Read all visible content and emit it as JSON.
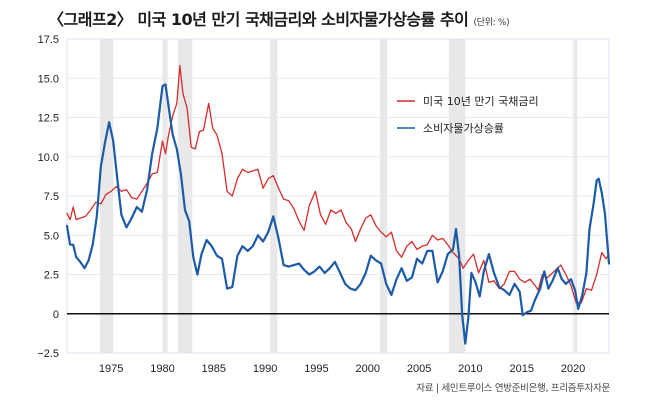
{
  "title": {
    "main": "〈그래프2〉 미국 10년 만기 국채금리와 소비자물가상승률 추이",
    "unit": "(단위: %)"
  },
  "source": "자료 |  세인트루이스 연방준비은행, 프리즘투자자문",
  "colors": {
    "treasury": "#d62c2c",
    "cpi": "#1d5aa8",
    "recession": "#e8e8e8",
    "grid": "#e3eaf3",
    "zero": "#111111"
  },
  "chart_data": {
    "type": "line",
    "title": "미국 10년 만기 국채금리와 소비자물가상승률 추이",
    "xlabel": "",
    "ylabel": "",
    "unit": "%",
    "xlim": [
      1970.7,
      2023.5
    ],
    "ylim": [
      -2.5,
      17.5
    ],
    "grid": true,
    "legend_position": "top-right",
    "yticks": [
      17.5,
      15.0,
      12.5,
      10.0,
      7.5,
      5.0,
      2.5,
      0,
      -2.5
    ],
    "ytick_labels": [
      "17.5",
      "15.0",
      "12.5",
      "10.0",
      "7.5",
      "5.0",
      "2.5",
      "0",
      "−2.5"
    ],
    "xticks": [
      1975,
      1980,
      1985,
      1990,
      1995,
      2000,
      2005,
      2010,
      2015,
      2020
    ],
    "xtick_labels": [
      "1975",
      "1980",
      "1985",
      "1990",
      "1995",
      "2000",
      "2005",
      "2010",
      "2015",
      "2020"
    ],
    "recessions": [
      [
        1973.9,
        1975.2
      ],
      [
        1980.0,
        1980.5
      ],
      [
        1981.5,
        1982.9
      ],
      [
        1990.5,
        1991.2
      ],
      [
        2001.2,
        2001.9
      ],
      [
        2007.9,
        2009.5
      ],
      [
        2020.1,
        2020.4
      ]
    ],
    "series": [
      {
        "name": "미국 10년 만기 국채금리",
        "color": "#d62c2c",
        "x": [
          1970.7,
          1971.0,
          1971.3,
          1971.6,
          1972.0,
          1972.5,
          1973.0,
          1973.5,
          1974.0,
          1974.5,
          1975.0,
          1975.5,
          1976.0,
          1976.5,
          1977.0,
          1977.5,
          1978.0,
          1978.5,
          1979.0,
          1979.5,
          1980.0,
          1980.3,
          1980.6,
          1981.0,
          1981.4,
          1981.7,
          1982.0,
          1982.4,
          1982.8,
          1983.2,
          1983.6,
          1984.0,
          1984.5,
          1984.9,
          1985.3,
          1985.8,
          1986.3,
          1986.8,
          1987.3,
          1987.8,
          1988.3,
          1988.8,
          1989.3,
          1989.8,
          1990.3,
          1990.8,
          1991.3,
          1991.8,
          1992.3,
          1992.8,
          1993.3,
          1993.8,
          1994.3,
          1994.9,
          1995.4,
          1995.9,
          1996.4,
          1996.9,
          1997.4,
          1997.9,
          1998.4,
          1998.8,
          1999.3,
          1999.8,
          2000.3,
          2000.8,
          2001.3,
          2001.8,
          2002.3,
          2002.8,
          2003.3,
          2003.8,
          2004.3,
          2004.8,
          2005.3,
          2005.8,
          2006.3,
          2006.8,
          2007.3,
          2007.8,
          2008.3,
          2008.9,
          2009.3,
          2009.8,
          2010.3,
          2010.8,
          2011.3,
          2011.8,
          2012.3,
          2012.8,
          2013.3,
          2013.8,
          2014.3,
          2014.8,
          2015.3,
          2015.8,
          2016.3,
          2016.6,
          2017.0,
          2017.5,
          2018.0,
          2018.8,
          2019.3,
          2019.8,
          2020.3,
          2020.8,
          2021.3,
          2021.8,
          2022.3,
          2022.8,
          2023.2,
          2023.5
        ],
        "values": [
          6.4,
          6.0,
          6.8,
          6.0,
          6.1,
          6.2,
          6.6,
          7.1,
          7.0,
          7.6,
          7.8,
          8.1,
          7.8,
          7.9,
          7.4,
          7.3,
          7.8,
          8.3,
          8.9,
          9.0,
          11.0,
          10.2,
          11.4,
          12.6,
          13.4,
          15.8,
          14.0,
          13.1,
          10.6,
          10.5,
          11.6,
          11.7,
          13.4,
          11.8,
          11.4,
          10.2,
          7.8,
          7.5,
          8.6,
          9.2,
          9.0,
          9.1,
          9.2,
          8.0,
          8.6,
          8.8,
          8.0,
          7.3,
          7.2,
          6.7,
          5.9,
          5.3,
          6.9,
          7.8,
          6.3,
          5.7,
          6.6,
          6.4,
          6.6,
          5.8,
          5.4,
          4.6,
          5.4,
          6.1,
          6.3,
          5.6,
          5.2,
          4.9,
          5.2,
          4.0,
          3.6,
          4.3,
          4.6,
          4.1,
          4.3,
          4.4,
          5.0,
          4.7,
          4.8,
          4.4,
          3.9,
          3.5,
          2.9,
          3.4,
          3.8,
          2.6,
          3.4,
          2.0,
          2.1,
          1.6,
          1.9,
          2.7,
          2.7,
          2.2,
          2.0,
          2.2,
          1.8,
          1.5,
          2.5,
          2.3,
          2.6,
          3.1,
          2.5,
          1.8,
          0.7,
          0.7,
          1.6,
          1.5,
          2.5,
          3.9,
          3.5,
          3.8
        ]
      },
      {
        "name": "소비자물가상승률",
        "color": "#1d5aa8",
        "x": [
          1970.7,
          1971.0,
          1971.3,
          1971.6,
          1972.0,
          1972.4,
          1972.8,
          1973.2,
          1973.6,
          1974.0,
          1974.4,
          1974.8,
          1975.2,
          1975.6,
          1976.0,
          1976.5,
          1977.0,
          1977.5,
          1978.0,
          1978.5,
          1979.0,
          1979.5,
          1980.0,
          1980.3,
          1980.7,
          1981.0,
          1981.4,
          1981.8,
          1982.2,
          1982.6,
          1983.0,
          1983.4,
          1983.8,
          1984.3,
          1984.8,
          1985.3,
          1985.8,
          1986.3,
          1986.8,
          1987.3,
          1987.8,
          1988.3,
          1988.8,
          1989.3,
          1989.8,
          1990.3,
          1990.8,
          1991.3,
          1991.8,
          1992.3,
          1992.8,
          1993.3,
          1993.8,
          1994.3,
          1994.8,
          1995.3,
          1995.8,
          1996.3,
          1996.8,
          1997.3,
          1997.8,
          1998.3,
          1998.8,
          1999.3,
          1999.8,
          2000.3,
          2000.8,
          2001.3,
          2001.8,
          2002.3,
          2002.8,
          2003.3,
          2003.8,
          2004.3,
          2004.8,
          2005.3,
          2005.8,
          2006.3,
          2006.8,
          2007.3,
          2007.8,
          2008.3,
          2008.6,
          2008.9,
          2009.2,
          2009.5,
          2009.8,
          2010.1,
          2010.5,
          2010.9,
          2011.3,
          2011.8,
          2012.3,
          2012.8,
          2013.3,
          2013.8,
          2014.3,
          2014.8,
          2015.1,
          2015.5,
          2015.9,
          2016.3,
          2016.8,
          2017.2,
          2017.6,
          2018.0,
          2018.5,
          2018.9,
          2019.3,
          2019.8,
          2020.2,
          2020.5,
          2020.9,
          2021.3,
          2021.6,
          2022.0,
          2022.3,
          2022.5,
          2022.8,
          2023.1,
          2023.5
        ],
        "values": [
          5.6,
          4.4,
          4.4,
          3.6,
          3.3,
          2.9,
          3.4,
          4.4,
          6.2,
          9.4,
          10.9,
          12.2,
          11.0,
          8.6,
          6.3,
          5.5,
          6.1,
          6.8,
          6.5,
          7.9,
          10.2,
          11.8,
          14.5,
          14.6,
          12.7,
          11.4,
          10.5,
          8.9,
          6.6,
          5.9,
          3.6,
          2.5,
          3.8,
          4.7,
          4.3,
          3.7,
          3.5,
          1.6,
          1.7,
          3.7,
          4.3,
          4.0,
          4.3,
          5.0,
          4.6,
          5.2,
          6.2,
          4.8,
          3.1,
          3.0,
          3.1,
          3.2,
          2.8,
          2.5,
          2.7,
          3.0,
          2.6,
          2.9,
          3.3,
          2.6,
          1.9,
          1.6,
          1.5,
          1.9,
          2.6,
          3.7,
          3.4,
          3.2,
          1.9,
          1.2,
          2.2,
          2.9,
          2.1,
          2.3,
          3.5,
          3.2,
          4.0,
          4.0,
          2.0,
          2.7,
          3.8,
          4.1,
          5.4,
          3.7,
          -0.1,
          -1.9,
          -0.2,
          2.6,
          2.0,
          1.1,
          2.7,
          3.8,
          2.6,
          1.7,
          1.5,
          1.2,
          1.9,
          1.4,
          -0.1,
          0.1,
          0.2,
          0.9,
          1.6,
          2.7,
          1.6,
          2.1,
          2.9,
          2.2,
          1.9,
          2.2,
          1.5,
          0.3,
          1.2,
          2.6,
          5.4,
          7.0,
          8.5,
          8.6,
          7.7,
          6.4,
          3.2
        ]
      }
    ]
  }
}
